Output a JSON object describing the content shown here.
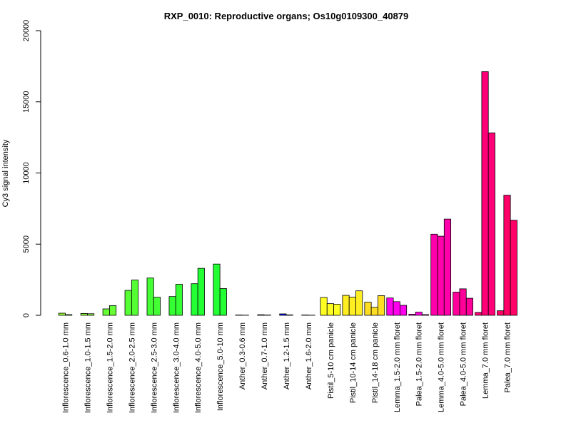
{
  "chart_data": {
    "type": "bar",
    "title": "RXP_0010: Reproductive organs; Os10g0109300_40879",
    "xlabel": "",
    "ylabel": "Cy3 signal intensity",
    "ylim": [
      0,
      20000
    ],
    "yticks": [
      0,
      5000,
      10000,
      15000,
      20000
    ],
    "grid": false,
    "legend": "none",
    "groups": [
      {
        "label": "Inflorescence_0.6-1.0 mm",
        "color": "#99FF33",
        "values": [
          150,
          50
        ]
      },
      {
        "label": "Inflorescence_1.0-1.5 mm",
        "color": "#88FF33",
        "values": [
          130,
          110
        ]
      },
      {
        "label": "Inflorescence_1.5-2.0 mm",
        "color": "#66FF33",
        "values": [
          450,
          680
        ]
      },
      {
        "label": "Inflorescence_2.0-2.5 mm",
        "color": "#55FF33",
        "values": [
          1750,
          2480
        ]
      },
      {
        "label": "Inflorescence_2.5-3.0 mm",
        "color": "#44FF33",
        "values": [
          2620,
          1270
        ]
      },
      {
        "label": "Inflorescence_3.0-4.0 mm",
        "color": "#33FF33",
        "values": [
          1320,
          2180
        ]
      },
      {
        "label": "Inflorescence_4.0-5.0 mm",
        "color": "#22FF33",
        "values": [
          2220,
          3300
        ]
      },
      {
        "label": "Inflorescence_5.0-10 mm",
        "color": "#22FF33",
        "values": [
          3600,
          1880
        ]
      },
      {
        "label": "Anther_0.3-0.6 mm",
        "color": "#0000FF",
        "values": [
          20,
          10
        ]
      },
      {
        "label": "Anther_0.7-1.0 mm",
        "color": "#0000FF",
        "values": [
          40,
          20
        ]
      },
      {
        "label": "Anther_1.2-1.5 mm",
        "color": "#0000FF",
        "values": [
          100,
          30
        ]
      },
      {
        "label": "Anther_1.6-2.0 mm",
        "color": "#0000FF",
        "values": [
          20,
          10
        ]
      },
      {
        "label": "Pistil_5-10 cm panicle",
        "color": "#FFFF22",
        "values": [
          1250,
          820,
          780
        ]
      },
      {
        "label": "Pistil_10-14 cm panicle",
        "color": "#FFEE22",
        "values": [
          1400,
          1280,
          1720
        ]
      },
      {
        "label": "Pistil_14-18 cm panicle",
        "color": "#FFDD22",
        "values": [
          920,
          560,
          1380
        ]
      },
      {
        "label": "Lemma_1.5-2.0 mm floret",
        "color": "#FF00EE",
        "values": [
          1220,
          960,
          700
        ]
      },
      {
        "label": "Palea_1.5-2.0 mm floret",
        "color": "#FF00DD",
        "values": [
          80,
          220,
          50
        ]
      },
      {
        "label": "Lemma_4.0-5.0 mm floret",
        "color": "#FF00AA",
        "values": [
          5700,
          5560,
          6760
        ]
      },
      {
        "label": "Palea_4.0-5.0 mm floret",
        "color": "#FF0099",
        "values": [
          1630,
          1860,
          1200
        ]
      },
      {
        "label": "Lemma_7.0 mm floret",
        "color": "#FF0077",
        "values": [
          200,
          17120,
          12820
        ]
      },
      {
        "label": "Palea_7.0 mm floret",
        "color": "#FF0066",
        "values": [
          320,
          8440,
          6680
        ]
      }
    ]
  }
}
